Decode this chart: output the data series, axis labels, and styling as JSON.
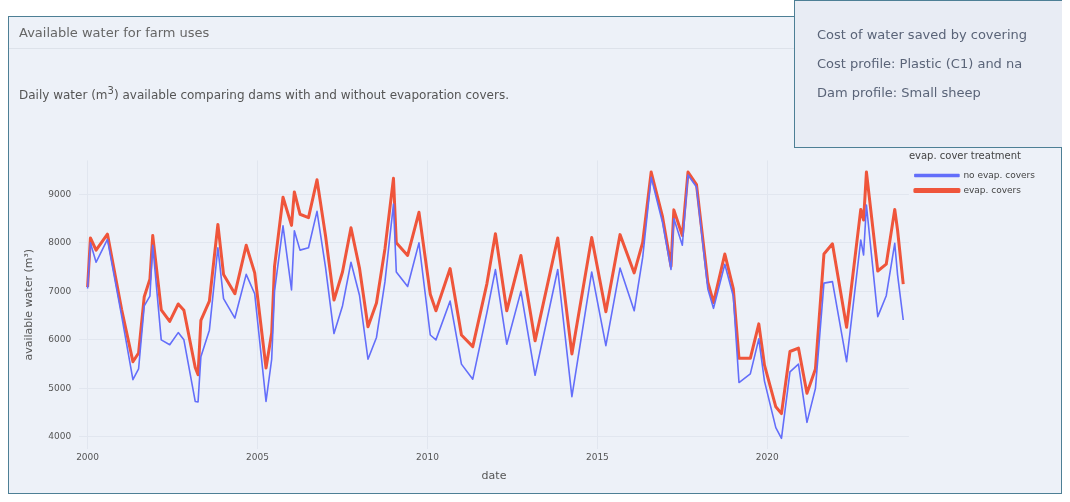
{
  "chart_data": {
    "type": "line",
    "title": "Available water for farm uses",
    "subtitle": "Daily water (m$^{3}$) available comparing dams with and without evaporation covers.",
    "xlabel": "date",
    "ylabel": "available water (m³)",
    "legend_title": "evap. cover treatment",
    "annotations": [
      "Cost of water saved by covering",
      "Cost profile: Plastic (C1) and na",
      "Dam profile: Small sheep"
    ],
    "x": [
      "2000-01",
      "2000-02",
      "2000-04",
      "2000-08",
      "2001-01",
      "2001-05",
      "2001-07",
      "2001-09",
      "2001-11",
      "2001-12",
      "2002-03",
      "2002-06",
      "2002-09",
      "2002-11",
      "2003-03",
      "2003-04",
      "2003-05",
      "2003-08",
      "2003-11",
      "2004-01",
      "2004-05",
      "2004-09",
      "2004-12",
      "2005-04",
      "2005-06",
      "2005-07",
      "2005-10",
      "2006-01",
      "2006-02",
      "2006-04",
      "2006-07",
      "2006-10",
      "2007-01",
      "2007-04",
      "2007-07",
      "2007-10",
      "2008-01",
      "2008-04",
      "2008-07",
      "2008-10",
      "2009-01",
      "2009-02",
      "2009-06",
      "2009-10",
      "2010-02",
      "2010-04",
      "2010-09",
      "2011-01",
      "2011-05",
      "2011-10",
      "2012-01",
      "2012-05",
      "2012-10",
      "2013-03",
      "2013-11",
      "2014-04",
      "2014-11",
      "2015-04",
      "2015-09",
      "2016-02",
      "2016-05",
      "2016-08",
      "2016-12",
      "2017-03",
      "2017-04",
      "2017-07",
      "2017-09",
      "2017-12",
      "2018-04",
      "2018-06",
      "2018-10",
      "2019-01",
      "2019-03",
      "2019-07",
      "2019-10",
      "2019-12",
      "2020-04",
      "2020-06",
      "2020-09",
      "2020-12",
      "2021-03",
      "2021-06",
      "2021-09",
      "2021-12",
      "2022-05",
      "2022-10",
      "2022-11",
      "2022-12",
      "2023-04",
      "2023-07",
      "2023-10",
      "2023-11",
      "2024-01"
    ],
    "series": [
      {
        "name": "no evap. covers",
        "color": "#636efa",
        "values": [
          7060,
          8000,
          7600,
          8070,
          6500,
          5180,
          5400,
          6700,
          6900,
          7950,
          6000,
          5900,
          6150,
          6000,
          4730,
          4720,
          5650,
          6200,
          7900,
          6850,
          6450,
          7350,
          6950,
          4730,
          5600,
          7000,
          8350,
          7030,
          8250,
          7850,
          7900,
          8650,
          7500,
          6130,
          6700,
          7600,
          6920,
          5600,
          6050,
          7200,
          8800,
          7400,
          7100,
          8000,
          6100,
          6000,
          6800,
          5500,
          5190,
          6560,
          7450,
          5910,
          7000,
          5270,
          7450,
          4830,
          7400,
          5880,
          7480,
          6600,
          7700,
          9350,
          8420,
          7450,
          8500,
          7950,
          9400,
          9150,
          7050,
          6650,
          7560,
          6900,
          5120,
          5300,
          6020,
          5150,
          4190,
          3970,
          5340,
          5500,
          4300,
          5000,
          7170,
          7200,
          5550,
          8060,
          7750,
          8780,
          6480,
          6910,
          7990,
          7340,
          6410
        ]
      },
      {
        "name": "evap. covers",
        "color": "#ef553b",
        "values": [
          7090,
          8100,
          7850,
          8180,
          6630,
          5550,
          5730,
          6890,
          7250,
          8150,
          6620,
          6380,
          6740,
          6610,
          5430,
          5280,
          6400,
          6800,
          8380,
          7350,
          6950,
          7950,
          7380,
          5420,
          6140,
          7510,
          8940,
          8360,
          9050,
          8590,
          8520,
          9300,
          8150,
          6820,
          7400,
          8310,
          7480,
          6270,
          6760,
          7880,
          9330,
          8000,
          7740,
          8630,
          6940,
          6600,
          7470,
          6100,
          5860,
          7160,
          8190,
          6600,
          7740,
          5980,
          8100,
          5710,
          8110,
          6580,
          8170,
          7380,
          8010,
          9460,
          8540,
          7520,
          8680,
          8150,
          9460,
          9200,
          7190,
          6770,
          7770,
          7050,
          5620,
          5620,
          6330,
          5480,
          4620,
          4480,
          5760,
          5830,
          4900,
          5400,
          7770,
          7980,
          6260,
          8690,
          8470,
          9460,
          7420,
          7560,
          8690,
          8260,
          7150
        ]
      }
    ],
    "xlim": [
      "1999-10",
      "2024-03"
    ],
    "xticks": [
      "2000",
      "2005",
      "2010",
      "2015",
      "2020"
    ],
    "ylim": [
      3750,
      9700
    ],
    "yticks": [
      4000,
      5000,
      6000,
      7000,
      8000,
      9000
    ],
    "grid": true,
    "legend": "top right",
    "line_style": "solid"
  }
}
